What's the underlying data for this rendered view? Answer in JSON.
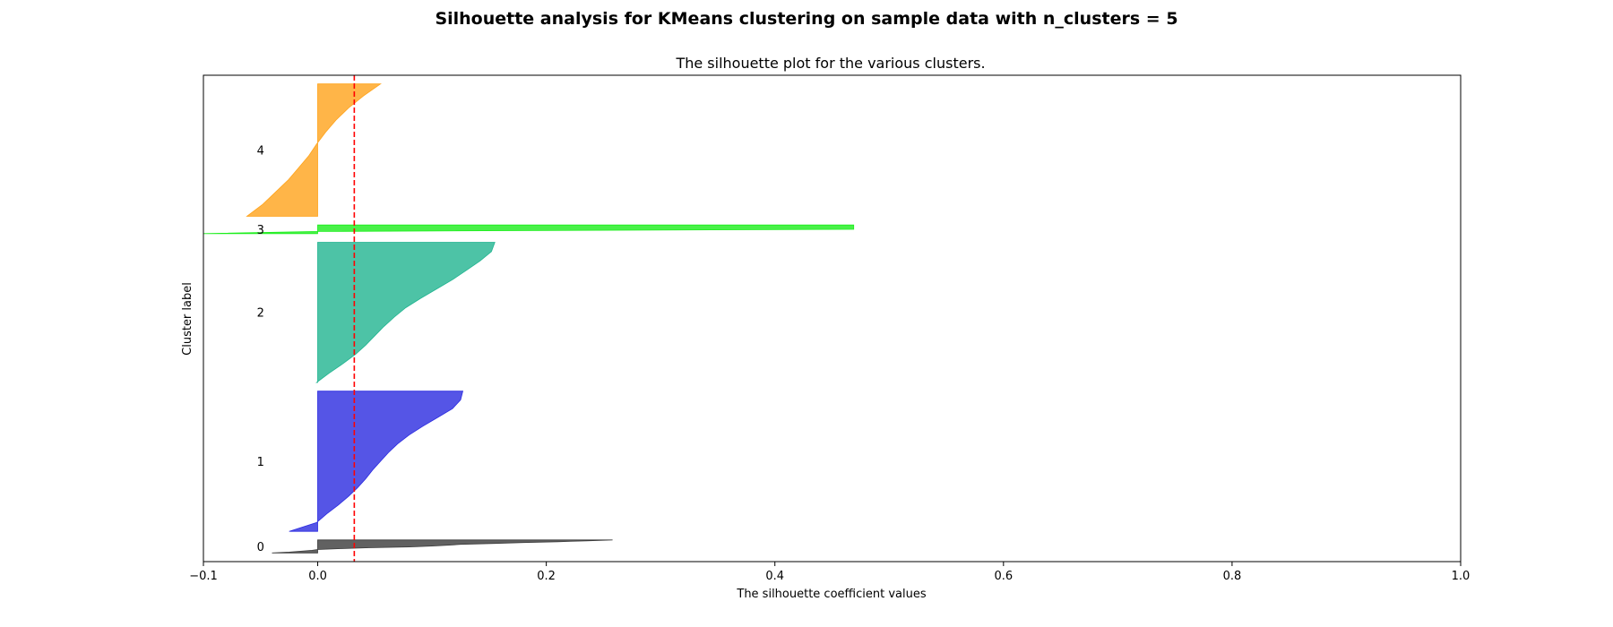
{
  "figure": {
    "suptitle": "Silhouette analysis for KMeans clustering on sample data with n_clusters = 5"
  },
  "chart_data": {
    "type": "area",
    "title": "The silhouette plot for the various clusters.",
    "xlabel": "The silhouette coefficient values",
    "ylabel": "Cluster label",
    "xlim": [
      -0.1,
      1.0
    ],
    "xticks": [
      -0.1,
      0.0,
      0.2,
      0.4,
      0.6,
      0.8,
      1.0
    ],
    "xtick_labels": [
      "−0.1",
      "0.0",
      "0.2",
      "0.4",
      "0.6",
      "0.8",
      "1.0"
    ],
    "yticks_visible": false,
    "grid": false,
    "average_silhouette_score": 0.032,
    "average_line_color": "#ff0000",
    "clusters": [
      {
        "label": "0",
        "color": "#3a3a3a",
        "size": 15,
        "values_sorted": [
          -0.04,
          -0.025,
          -0.015,
          -0.005,
          0.0,
          0.02,
          0.045,
          0.08,
          0.1,
          0.115,
          0.125,
          0.155,
          0.18,
          0.21,
          0.235,
          0.258
        ]
      },
      {
        "label": "1",
        "color": "#2b2be0",
        "size": 162,
        "values_sorted": [
          -0.025,
          -0.001,
          0.008,
          0.018,
          0.027,
          0.035,
          0.042,
          0.048,
          0.055,
          0.062,
          0.07,
          0.08,
          0.092,
          0.105,
          0.118,
          0.125,
          0.127
        ]
      },
      {
        "label": "2",
        "color": "#20b490",
        "size": 162,
        "values_sorted": [
          -0.001,
          0.01,
          0.022,
          0.033,
          0.042,
          0.05,
          0.058,
          0.067,
          0.077,
          0.09,
          0.104,
          0.118,
          0.13,
          0.142,
          0.152,
          0.155
        ]
      },
      {
        "label": "3",
        "color": "#1aee1a",
        "size": 10,
        "values_sorted": [
          -0.1,
          0.0,
          0.469,
          0.469,
          0.469
        ]
      },
      {
        "label": "4",
        "color": "#ffa31a",
        "size": 153,
        "values_sorted": [
          -0.062,
          -0.048,
          -0.037,
          -0.026,
          -0.017,
          -0.008,
          -0.001,
          0.007,
          0.016,
          0.027,
          0.04,
          0.055
        ]
      }
    ]
  }
}
